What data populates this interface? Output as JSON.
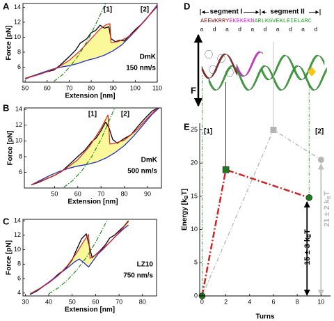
{
  "chart_data": [
    {
      "type": "line",
      "panel": "A",
      "xlabel": "Extension [nm]",
      "ylabel": "Force [pN]",
      "frame": true,
      "xlim": [
        49,
        110
      ],
      "ylim": [
        4,
        14.5
      ],
      "xticks": [
        50,
        60,
        70,
        80,
        90,
        100,
        110
      ],
      "yticks": [
        6,
        8,
        10,
        12,
        14
      ],
      "annotations": [
        "[1]",
        "[2]",
        "DmK",
        "150 nm/s"
      ],
      "fill": {
        "color": "#fbf89a",
        "between": [
          2,
          1
        ]
      },
      "series": [
        {
          "color": "#000000",
          "width": 1.3,
          "x": [
            50,
            53,
            56,
            60,
            63,
            66,
            70,
            73,
            75,
            78,
            80,
            82,
            84,
            86,
            88,
            89,
            91,
            93,
            95,
            97,
            100,
            103,
            106,
            110
          ],
          "values": [
            4.5,
            4.8,
            5.0,
            5.4,
            5.6,
            6.3,
            7.4,
            8.3,
            9.2,
            9.8,
            10.6,
            10.9,
            11.6,
            11.2,
            11.4,
            9.8,
            9.4,
            9.6,
            9.5,
            10.1,
            11.0,
            11.8,
            12.8,
            14.3
          ]
        },
        {
          "color": "#1f2fd0",
          "width": 1.3,
          "x": [
            50,
            54,
            58,
            62,
            66,
            70,
            74,
            78,
            82,
            86,
            90,
            94,
            98,
            102,
            106,
            110
          ],
          "values": [
            4.4,
            4.9,
            5.3,
            5.7,
            6.0,
            6.2,
            6.5,
            6.9,
            7.2,
            7.6,
            8.2,
            9.0,
            10.2,
            11.5,
            12.8,
            14.1
          ]
        },
        {
          "color": "#e02020",
          "width": 1.2,
          "x": [
            50,
            55,
            60,
            65,
            70,
            75,
            80,
            84,
            87,
            88.5,
            89,
            92,
            96,
            100,
            105,
            110
          ],
          "values": [
            4.5,
            4.9,
            5.4,
            6.0,
            6.9,
            8.2,
            9.8,
            11.1,
            11.7,
            11.8,
            9.3,
            9.4,
            9.9,
            10.8,
            12.4,
            14.3
          ]
        },
        {
          "color": "#228b22",
          "width": 1.2,
          "dash": "6 2 1.5 2",
          "x": [
            63,
            67,
            71,
            75,
            79,
            83,
            87
          ],
          "values": [
            4.1,
            5.0,
            6.3,
            7.9,
            9.9,
            12.3,
            14.8
          ]
        }
      ]
    },
    {
      "type": "line",
      "panel": "B",
      "xlabel": "Extension [nm]",
      "ylabel": "Force [pN]",
      "frame": true,
      "xlim": [
        37,
        96
      ],
      "ylim": [
        4,
        14.2
      ],
      "xticks": [
        50,
        60,
        70,
        80,
        90
      ],
      "yticks": [
        6,
        8,
        10,
        12,
        14
      ],
      "annotations": [
        "[1]",
        "[2]",
        "DmK",
        "500 nm/s"
      ],
      "fill": {
        "color": "#fbf89a",
        "between": [
          2,
          1
        ]
      },
      "series": [
        {
          "color": "#000000",
          "width": 1.3,
          "x": [
            40,
            43,
            46,
            50,
            53,
            56,
            60,
            63,
            66,
            68,
            70,
            72,
            73.5,
            75,
            77,
            80,
            83,
            86,
            89,
            92,
            95
          ],
          "values": [
            4.4,
            4.7,
            5.1,
            5.6,
            6.1,
            6.9,
            8.0,
            8.8,
            9.9,
            10.4,
            11.3,
            12.4,
            11.6,
            10.2,
            9.7,
            10.3,
            10.8,
            11.9,
            12.9,
            13.8,
            14.3
          ]
        },
        {
          "color": "#1f2fd0",
          "width": 1.3,
          "x": [
            40,
            44,
            48,
            52,
            56,
            60,
            64,
            68,
            72,
            76,
            80,
            84,
            88,
            92,
            95
          ],
          "values": [
            4.4,
            5.0,
            5.6,
            6.1,
            6.5,
            6.8,
            7.0,
            7.3,
            7.8,
            8.5,
            9.4,
            10.6,
            12.0,
            13.4,
            14.2
          ]
        },
        {
          "color": "#e02020",
          "width": 1.2,
          "x": [
            40,
            45,
            50,
            55,
            60,
            65,
            70,
            73,
            73.8,
            76,
            80,
            85,
            90,
            95
          ],
          "values": [
            4.4,
            5.0,
            5.6,
            6.5,
            7.6,
            9.3,
            11.6,
            13.3,
            9.6,
            9.7,
            10.1,
            11.3,
            12.9,
            14.4
          ]
        },
        {
          "color": "#228b22",
          "width": 1.2,
          "dash": "6 2 1.5 2",
          "x": [
            54,
            58,
            62,
            66,
            70,
            74,
            77
          ],
          "values": [
            4.1,
            5.0,
            6.3,
            8.0,
            10.2,
            12.9,
            15.0
          ]
        }
      ]
    },
    {
      "type": "line",
      "panel": "C",
      "xlabel": "Extension [nm]",
      "ylabel": "Force [pN]",
      "frame": true,
      "xlim": [
        29,
        86
      ],
      "ylim": [
        3.6,
        14.2
      ],
      "xticks": [
        30,
        40,
        50,
        60,
        70,
        80
      ],
      "yticks": [
        4,
        6,
        8,
        10,
        12,
        14
      ],
      "annotations": [
        "LZ10",
        "750 nm/s"
      ],
      "fill": {
        "color": "#fbf89a",
        "between": [
          2,
          1
        ]
      },
      "series": [
        {
          "color": "#000000",
          "width": 1.3,
          "x": [
            32,
            35,
            38,
            41,
            44,
            47,
            50,
            52,
            54,
            56,
            57,
            58.5,
            60,
            62,
            64,
            66,
            68,
            70,
            72,
            74
          ],
          "values": [
            3.8,
            4.3,
            5.0,
            5.7,
            6.6,
            7.3,
            8.6,
            10.1,
            11.5,
            12.2,
            10.9,
            8.9,
            9.3,
            9.9,
            10.6,
            11.6,
            12.0,
            12.6,
            13.2,
            14.0
          ]
        },
        {
          "color": "#1f2fd0",
          "width": 1.3,
          "x": [
            32,
            36,
            40,
            44,
            48,
            51,
            53,
            55,
            57,
            59,
            61,
            63,
            66,
            69,
            72,
            74
          ],
          "values": [
            3.8,
            4.6,
            5.5,
            6.5,
            7.5,
            8.3,
            8.7,
            8.2,
            7.6,
            8.5,
            9.4,
            10.0,
            11.0,
            12.0,
            12.9,
            13.4
          ]
        },
        {
          "color": "#e02020",
          "width": 1.2,
          "x": [
            32,
            36,
            40,
            44,
            48,
            52,
            55,
            57,
            57.6,
            60,
            63,
            66,
            70,
            74
          ],
          "values": [
            3.9,
            4.6,
            5.4,
            6.4,
            7.8,
            9.6,
            11.2,
            12.1,
            8.8,
            9.3,
            10.1,
            11.0,
            12.4,
            13.9
          ]
        },
        {
          "color": "#228b22",
          "width": 1.2,
          "dash": "6 2 1.5 2",
          "x": [
            40,
            44,
            48,
            52,
            56,
            60,
            64,
            66
          ],
          "values": [
            3.9,
            4.7,
            5.8,
            7.2,
            8.9,
            11.0,
            13.5,
            14.9
          ]
        }
      ]
    },
    {
      "type": "energy",
      "panel": "E",
      "xlabel": "Turns",
      "ylabel": [
        "Energy [k",
        "B",
        "T]"
      ],
      "frame": false,
      "xlim": [
        -0.2,
        10.8
      ],
      "ylim": [
        0,
        26
      ],
      "xticks": [
        0,
        2,
        4,
        6,
        8,
        10
      ],
      "yticks": [
        0,
        5,
        10,
        15,
        20,
        25
      ],
      "annotations": [
        "[1]",
        "[2]",
        [
          "15 ± 3 k",
          "B",
          "T"
        ],
        [
          "21 ± 2 k",
          "B",
          "T"
        ]
      ],
      "series": [
        {
          "color": "#d42020",
          "width": 2.5,
          "dash": "9 3 2 3",
          "x": [
            0,
            2,
            9
          ],
          "values": [
            0,
            19,
            14.8
          ],
          "markers": [
            "circle",
            "square",
            "circle"
          ],
          "marker_color": "#1f7a1f",
          "arrow_color": "#000000"
        },
        {
          "color": "#b4b4b4",
          "width": 1.3,
          "dash": "6 3 1.5 3",
          "x": [
            0,
            6,
            10
          ],
          "values": [
            0,
            25,
            20.5
          ],
          "markers": [
            "circle",
            "square",
            "circle"
          ],
          "marker_color": "#b4b4b4",
          "arrow_color": "#c0c0c0"
        }
      ]
    }
  ],
  "panel_d": {
    "panel": "D",
    "segments": [
      "segment I",
      "segment II"
    ],
    "force": "F",
    "sequence": [
      {
        "text": "AEEWKRRY",
        "color": "#8b1a1a"
      },
      {
        "text": "EKEKEKN",
        "color": "#e020e0"
      },
      {
        "text": "ARLKGVEKLEIELARC",
        "color": "#22aa22"
      }
    ],
    "heptad": [
      "a",
      "d",
      "a",
      "d",
      "a",
      "d",
      "a",
      "d",
      "a",
      "d"
    ]
  }
}
